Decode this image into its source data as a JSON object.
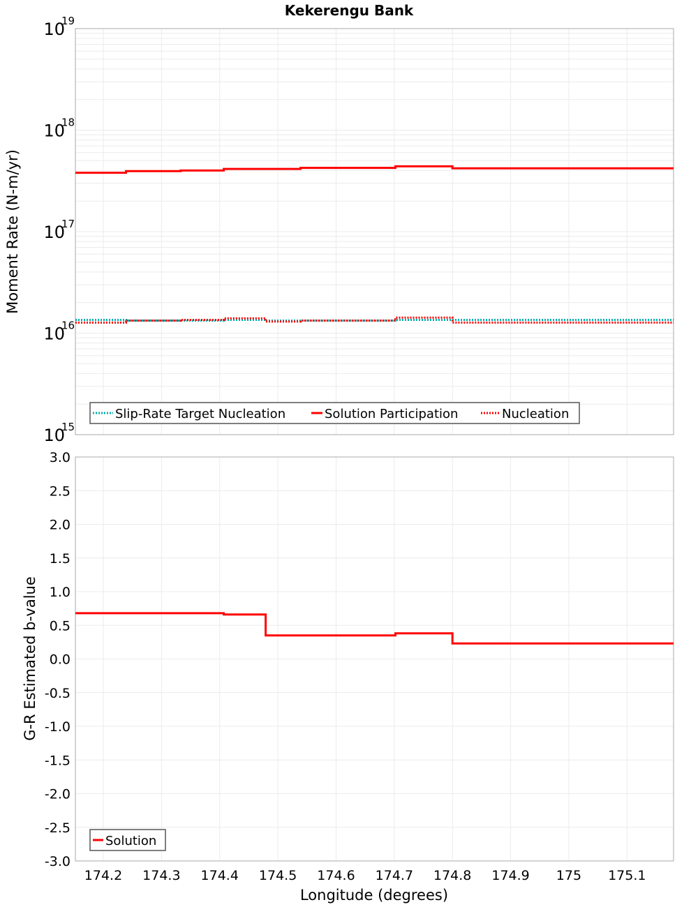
{
  "title": "Kekerengu Bank",
  "colors": {
    "solution": "#ff0000",
    "slip_rate_target": "#00b0b0",
    "nucleation": "#ff0000",
    "grid": "#ebebeb",
    "frame": "#aaaaaa"
  },
  "x_axis": {
    "label": "Longitude (degrees)",
    "ticks": [
      "174.2",
      "174.3",
      "174.4",
      "174.5",
      "174.6",
      "174.7",
      "174.8",
      "174.9",
      "175",
      "175.1"
    ]
  },
  "top_panel": {
    "y_label": "Moment Rate (N-m/yr)",
    "y_ticks": [
      {
        "base": "10",
        "exp": "19"
      },
      {
        "base": "10",
        "exp": "18"
      },
      {
        "base": "10",
        "exp": "17"
      },
      {
        "base": "10",
        "exp": "16"
      },
      {
        "base": "10",
        "exp": "15"
      }
    ],
    "legend": [
      "Slip-Rate Target Nucleation",
      "Solution Participation",
      "Nucleation"
    ]
  },
  "bottom_panel": {
    "y_label": "G-R Estimated b-value",
    "y_ticks": [
      "3.0",
      "2.5",
      "2.0",
      "1.5",
      "1.0",
      "0.5",
      "0.0",
      "-0.5",
      "-1.0",
      "-1.5",
      "-2.0",
      "-2.5",
      "-3.0"
    ],
    "legend": [
      "Solution"
    ]
  },
  "chart_data": [
    {
      "type": "line",
      "title": "Kekerengu Bank",
      "xlabel": "Longitude (degrees)",
      "ylabel": "Moment Rate (N-m/yr)",
      "yscale": "log",
      "xlim": [
        174.152,
        175.18
      ],
      "ylim": [
        1000000000000000.0,
        1e+19
      ],
      "grid": true,
      "legend_position": "lower-left",
      "step": true,
      "x_edges": [
        174.152,
        174.239,
        174.333,
        174.407,
        174.479,
        174.539,
        174.702,
        174.8,
        174.895,
        174.991,
        175.088,
        175.18
      ],
      "series": [
        {
          "name": "Slip-Rate Target Nucleation",
          "style": "dotted",
          "color": "#00b0b0",
          "values": [
            1.35e+16,
            1.33e+16,
            1.33e+16,
            1.35e+16,
            1.33e+16,
            1.33e+16,
            1.35e+16,
            1.35e+16,
            1.35e+16,
            1.35e+16,
            1.35e+16
          ]
        },
        {
          "name": "Solution Participation",
          "style": "solid",
          "color": "#ff0000",
          "values": [
            3.8e+17,
            3.95e+17,
            4e+17,
            4.15e+17,
            4.15e+17,
            4.25e+17,
            4.4e+17,
            4.2e+17,
            4.2e+17,
            4.2e+17,
            4.2e+17
          ]
        },
        {
          "name": "Nucleation",
          "style": "dotted",
          "color": "#ff0000",
          "values": [
            1.27e+16,
            1.33e+16,
            1.35e+16,
            1.4e+16,
            1.3e+16,
            1.33e+16,
            1.42e+16,
            1.27e+16,
            1.27e+16,
            1.27e+16,
            1.27e+16
          ]
        }
      ]
    },
    {
      "type": "line",
      "xlabel": "Longitude (degrees)",
      "ylabel": "G-R Estimated b-value",
      "xlim": [
        174.152,
        175.18
      ],
      "ylim": [
        -3.0,
        3.0
      ],
      "grid": true,
      "legend_position": "lower-left",
      "step": true,
      "x_edges": [
        174.152,
        174.239,
        174.333,
        174.407,
        174.479,
        174.539,
        174.702,
        174.8,
        174.895,
        174.991,
        175.088,
        175.18
      ],
      "series": [
        {
          "name": "Solution",
          "style": "solid",
          "color": "#ff0000",
          "values": [
            0.68,
            0.68,
            0.68,
            0.66,
            0.35,
            0.35,
            0.38,
            0.23,
            0.23,
            0.23,
            0.23
          ]
        }
      ]
    }
  ]
}
